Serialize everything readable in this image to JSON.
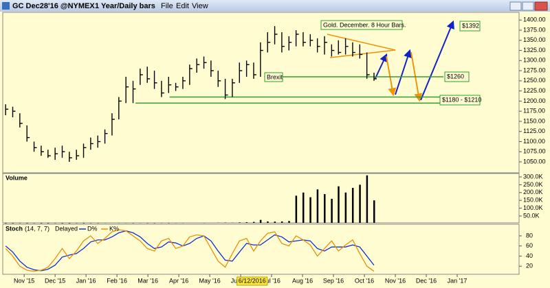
{
  "window": {
    "symbol": "GC Dec28'16 @NYMEX",
    "period": "1 Year/Daily bars",
    "menu": [
      "File",
      "Edit",
      "View"
    ]
  },
  "chart_data": [
    {
      "type": "ohlc",
      "annotations": [
        "Gold. December. 8 Hour Bars.",
        "Brexit",
        "$1260",
        "$1180 - $1210",
        "$1392"
      ],
      "cursor_date": {
        "x": 8.37,
        "label": "6/12/2016"
      },
      "xlim": [
        0.33,
        17
      ],
      "xticks": [
        {
          "value": 1,
          "label": "Nov '15"
        },
        {
          "value": 2,
          "label": "Dec '15"
        },
        {
          "value": 3,
          "label": "Jan '16"
        },
        {
          "value": 4,
          "label": "Feb '16"
        },
        {
          "value": 5,
          "label": "Mar '16"
        },
        {
          "value": 6,
          "label": "Apr '16"
        },
        {
          "value": 7,
          "label": "May '16"
        },
        {
          "value": 8,
          "label": "Jun '16"
        },
        {
          "value": 9,
          "label": "Jul '16"
        },
        {
          "value": 10,
          "label": "Aug '16"
        },
        {
          "value": 11,
          "label": "Sep '16"
        },
        {
          "value": 12,
          "label": "Oct '16"
        },
        {
          "value": 13,
          "label": "Nov '16"
        },
        {
          "value": 14,
          "label": "Dec '16"
        },
        {
          "value": 15,
          "label": "Jan '17"
        }
      ],
      "ylim": [
        1023,
        1419
      ],
      "yticks": [
        {
          "value": 1050,
          "label": "1050.00"
        },
        {
          "value": 1075,
          "label": "1075.00"
        },
        {
          "value": 1100,
          "label": "1100.00"
        },
        {
          "value": 1125,
          "label": "1125.00"
        },
        {
          "value": 1150,
          "label": "1150.00"
        },
        {
          "value": 1175,
          "label": "1175.00"
        },
        {
          "value": 1200,
          "label": "1200.00"
        },
        {
          "value": 1225,
          "label": "1225.00"
        },
        {
          "value": 1250,
          "label": "1250.00"
        },
        {
          "value": 1275,
          "label": "1275.00"
        },
        {
          "value": 1300,
          "label": "1300.00"
        },
        {
          "value": 1325,
          "label": "1325.00"
        },
        {
          "value": 1350,
          "label": "1350.00"
        },
        {
          "value": 1375,
          "label": "1375.00"
        },
        {
          "value": 1400,
          "label": "1400.00"
        }
      ],
      "grid": false,
      "color": "#000000",
      "levels": [
        {
          "value": 1260,
          "from": 8.76,
          "color": "#2e9e2e"
        },
        {
          "value": 1210,
          "from": 5.7,
          "color": "#2e9e2e"
        },
        {
          "value": 1195,
          "from": 4.6,
          "color": "#2e9e2e"
        }
      ],
      "x": [
        0.4,
        0.63,
        0.86,
        1.09,
        1.32,
        1.55,
        1.77,
        2.0,
        2.23,
        2.46,
        2.69,
        2.92,
        3.15,
        3.38,
        3.61,
        3.84,
        4.06,
        4.29,
        4.52,
        4.75,
        4.98,
        5.21,
        5.44,
        5.67,
        5.9,
        6.13,
        6.35,
        6.58,
        6.81,
        7.04,
        7.27,
        7.5,
        7.73,
        7.96,
        8.19,
        8.42,
        8.64,
        8.87,
        9.1,
        9.33,
        9.56,
        9.79,
        10.02,
        10.25,
        10.48,
        10.71,
        10.94,
        11.16,
        11.39,
        11.62,
        11.85,
        12.08,
        12.31
      ],
      "high": [
        1192,
        1186,
        1170,
        1140,
        1100,
        1090,
        1080,
        1085,
        1090,
        1075,
        1080,
        1095,
        1110,
        1115,
        1130,
        1170,
        1210,
        1260,
        1250,
        1280,
        1285,
        1275,
        1250,
        1260,
        1245,
        1260,
        1290,
        1305,
        1310,
        1300,
        1275,
        1255,
        1255,
        1295,
        1300,
        1295,
        1345,
        1370,
        1385,
        1370,
        1360,
        1375,
        1370,
        1365,
        1355,
        1360,
        1340,
        1350,
        1355,
        1345,
        1340,
        1320,
        1270
      ],
      "low": [
        1165,
        1160,
        1135,
        1100,
        1075,
        1065,
        1060,
        1055,
        1060,
        1050,
        1055,
        1060,
        1080,
        1085,
        1095,
        1115,
        1155,
        1195,
        1195,
        1240,
        1245,
        1230,
        1210,
        1220,
        1225,
        1230,
        1240,
        1270,
        1280,
        1260,
        1235,
        1205,
        1210,
        1245,
        1260,
        1255,
        1260,
        1320,
        1340,
        1320,
        1325,
        1335,
        1335,
        1335,
        1320,
        1315,
        1310,
        1315,
        1315,
        1310,
        1305,
        1255,
        1250
      ],
      "close": [
        1180,
        1175,
        1145,
        1110,
        1085,
        1075,
        1065,
        1070,
        1075,
        1060,
        1065,
        1085,
        1095,
        1100,
        1120,
        1155,
        1200,
        1235,
        1230,
        1265,
        1255,
        1245,
        1220,
        1240,
        1235,
        1250,
        1280,
        1290,
        1295,
        1275,
        1250,
        1215,
        1245,
        1275,
        1290,
        1265,
        1325,
        1345,
        1365,
        1335,
        1345,
        1365,
        1345,
        1350,
        1335,
        1345,
        1325,
        1320,
        1335,
        1320,
        1315,
        1265,
        1255
      ]
    },
    {
      "type": "bar",
      "title": "Volume",
      "color": "#000000",
      "ylim": [
        6000,
        322000
      ],
      "yticks": [
        {
          "value": 50000,
          "label": "50.0K"
        },
        {
          "value": 100000,
          "label": "100.0K"
        },
        {
          "value": 150000,
          "label": "150.0K"
        },
        {
          "value": 200000,
          "label": "200.0K"
        },
        {
          "value": 250000,
          "label": "250.0K"
        },
        {
          "value": 300000,
          "label": "300.0K"
        }
      ],
      "values": [
        3000,
        3000,
        4000,
        3000,
        4000,
        3000,
        3000,
        4000,
        3000,
        3000,
        4000,
        3000,
        4000,
        4000,
        5000,
        6000,
        5000,
        5000,
        4000,
        5000,
        4000,
        4000,
        5000,
        4000,
        5000,
        5000,
        6000,
        6000,
        5000,
        6000,
        7000,
        8000,
        7000,
        9000,
        10000,
        12000,
        25000,
        15000,
        14000,
        15000,
        18000,
        180000,
        200000,
        170000,
        220000,
        190000,
        160000,
        240000,
        200000,
        230000,
        250000,
        310000,
        150000
      ]
    },
    {
      "type": "line",
      "title": "Stoch",
      "params": "(14, 7, 7)",
      "mode": "Delayed",
      "ylim": [
        4,
        103
      ],
      "yticks": [
        20,
        40,
        60,
        80
      ],
      "series": [
        {
          "name": "D%",
          "color": "#1030c8",
          "values": [
            60,
            48,
            30,
            18,
            13,
            11,
            14,
            22,
            38,
            42,
            45,
            55,
            68,
            72,
            72,
            78,
            86,
            90,
            86,
            78,
            65,
            55,
            58,
            68,
            66,
            60,
            65,
            75,
            80,
            70,
            50,
            32,
            30,
            48,
            65,
            62,
            62,
            72,
            82,
            78,
            68,
            70,
            72,
            70,
            55,
            50,
            58,
            58,
            58,
            62,
            58,
            40,
            22
          ]
        },
        {
          "name": "K%",
          "color": "#e8900a",
          "values": [
            55,
            40,
            20,
            12,
            10,
            12,
            18,
            35,
            55,
            35,
            50,
            70,
            80,
            65,
            75,
            88,
            92,
            90,
            80,
            70,
            55,
            50,
            70,
            75,
            55,
            60,
            78,
            82,
            80,
            55,
            30,
            18,
            45,
            70,
            75,
            50,
            70,
            85,
            88,
            65,
            60,
            80,
            72,
            62,
            40,
            55,
            70,
            50,
            62,
            72,
            45,
            20,
            10
          ]
        }
      ]
    }
  ]
}
